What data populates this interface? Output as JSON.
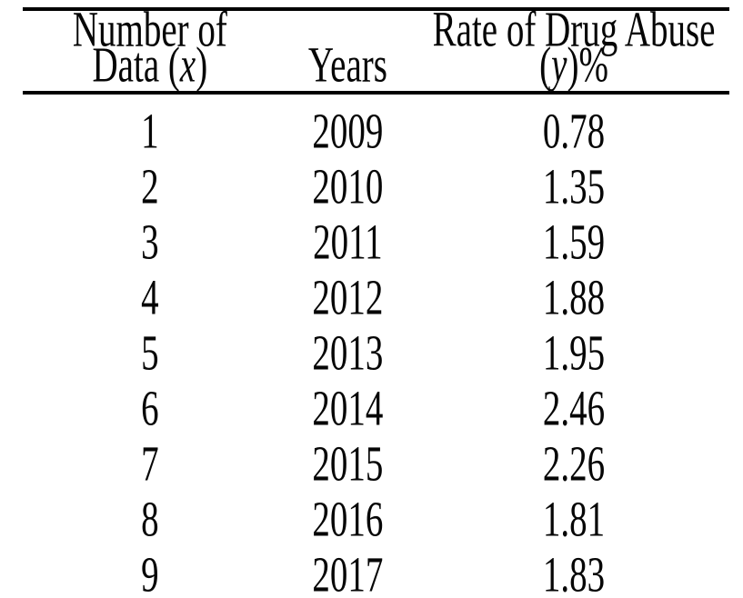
{
  "colors": {
    "text": "#060606",
    "rule": "#000000",
    "background": "#ffffff"
  },
  "table": {
    "headers": {
      "col1": {
        "line1": "Number of",
        "line2_pre": "Data (",
        "line2_var": "x",
        "line2_post": ")"
      },
      "col2": {
        "label": "Years"
      },
      "col3": {
        "line1": "Rate of Drug Abuse",
        "line2_pre": "(",
        "line2_var": "y",
        "line2_post": ")%"
      }
    },
    "rows": [
      {
        "x": "1",
        "year": "2009",
        "rate": "0.78"
      },
      {
        "x": "2",
        "year": "2010",
        "rate": "1.35"
      },
      {
        "x": "3",
        "year": "2011",
        "rate": "1.59"
      },
      {
        "x": "4",
        "year": "2012",
        "rate": "1.88"
      },
      {
        "x": "5",
        "year": "2013",
        "rate": "1.95"
      },
      {
        "x": "6",
        "year": "2014",
        "rate": "2.46"
      },
      {
        "x": "7",
        "year": "2015",
        "rate": "2.26"
      },
      {
        "x": "8",
        "year": "2016",
        "rate": "1.81"
      },
      {
        "x": "9",
        "year": "2017",
        "rate": "1.83"
      }
    ]
  },
  "chart_data": {
    "type": "table",
    "columns": [
      "Number of Data (x)",
      "Years",
      "Rate of Drug Abuse (y)%"
    ],
    "x": [
      1,
      2,
      3,
      4,
      5,
      6,
      7,
      8,
      9
    ],
    "years": [
      2009,
      2010,
      2011,
      2012,
      2013,
      2014,
      2015,
      2016,
      2017
    ],
    "rates_percent": [
      0.78,
      1.35,
      1.59,
      1.88,
      1.95,
      2.46,
      2.26,
      1.81,
      1.83
    ]
  }
}
